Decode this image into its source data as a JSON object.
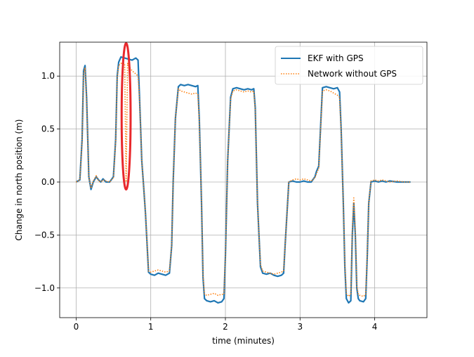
{
  "chart_data": {
    "type": "line",
    "xlabel": "time (minutes)",
    "ylabel": "Change in north position (m)",
    "xlim": [
      -0.22,
      4.7
    ],
    "ylim": [
      -1.28,
      1.32
    ],
    "xticks": [
      0,
      1,
      2,
      3,
      4
    ],
    "xtick_labels": [
      "0",
      "1",
      "2",
      "3",
      "4"
    ],
    "yticks": [
      -1.0,
      -0.5,
      0.0,
      0.5,
      1.0
    ],
    "ytick_labels": [
      "−1.0",
      "−0.5",
      "0.0",
      "0.5",
      "1.0"
    ],
    "grid": true,
    "legend": "upper-right",
    "series": [
      {
        "name": "EKF with GPS",
        "color": "#1f77b4",
        "style": "solid",
        "x": [
          0.0,
          0.05,
          0.08,
          0.1,
          0.12,
          0.14,
          0.17,
          0.2,
          0.23,
          0.27,
          0.3,
          0.33,
          0.36,
          0.4,
          0.45,
          0.5,
          0.53,
          0.55,
          0.57,
          0.6,
          0.65,
          0.7,
          0.75,
          0.8,
          0.83,
          0.85,
          0.88,
          0.9,
          0.93,
          0.97,
          1.0,
          1.05,
          1.1,
          1.15,
          1.2,
          1.25,
          1.28,
          1.3,
          1.33,
          1.37,
          1.4,
          1.45,
          1.5,
          1.55,
          1.6,
          1.63,
          1.65,
          1.68,
          1.7,
          1.72,
          1.75,
          1.8,
          1.85,
          1.9,
          1.95,
          1.98,
          2.0,
          2.03,
          2.07,
          2.1,
          2.15,
          2.2,
          2.25,
          2.3,
          2.35,
          2.38,
          2.4,
          2.43,
          2.47,
          2.5,
          2.55,
          2.6,
          2.65,
          2.7,
          2.75,
          2.78,
          2.8,
          2.85,
          2.9,
          2.95,
          3.0,
          3.05,
          3.1,
          3.15,
          3.2,
          3.22,
          3.25,
          3.28,
          3.3,
          3.35,
          3.4,
          3.45,
          3.5,
          3.53,
          3.55,
          3.58,
          3.6,
          3.62,
          3.65,
          3.68,
          3.7,
          3.72,
          3.74,
          3.76,
          3.78,
          3.8,
          3.85,
          3.88,
          3.9,
          3.92,
          3.95,
          4.0,
          4.05,
          4.1,
          4.15,
          4.2,
          4.3,
          4.4,
          4.48
        ],
        "y": [
          0.0,
          0.02,
          0.4,
          1.05,
          1.1,
          0.8,
          0.05,
          -0.07,
          0.0,
          0.05,
          0.02,
          0.0,
          0.03,
          0.0,
          0.0,
          0.05,
          0.4,
          1.0,
          1.13,
          1.18,
          1.17,
          1.16,
          1.15,
          1.17,
          1.15,
          0.8,
          0.2,
          0.0,
          -0.3,
          -0.85,
          -0.87,
          -0.88,
          -0.86,
          -0.87,
          -0.88,
          -0.86,
          -0.6,
          0.0,
          0.6,
          0.9,
          0.92,
          0.91,
          0.92,
          0.91,
          0.9,
          0.91,
          0.6,
          -0.2,
          -0.9,
          -1.1,
          -1.12,
          -1.13,
          -1.12,
          -1.14,
          -1.13,
          -1.1,
          -0.7,
          0.2,
          0.8,
          0.88,
          0.89,
          0.88,
          0.87,
          0.88,
          0.87,
          0.88,
          0.7,
          -0.2,
          -0.8,
          -0.86,
          -0.87,
          -0.86,
          -0.88,
          -0.89,
          -0.88,
          -0.86,
          -0.6,
          0.0,
          0.01,
          0.0,
          0.0,
          0.01,
          0.0,
          0.0,
          0.05,
          0.1,
          0.15,
          0.6,
          0.89,
          0.9,
          0.89,
          0.88,
          0.89,
          0.85,
          0.5,
          -0.2,
          -0.8,
          -1.1,
          -1.14,
          -1.12,
          -0.5,
          -0.2,
          -0.5,
          -1.0,
          -1.1,
          -1.12,
          -1.13,
          -1.1,
          -0.7,
          -0.2,
          0.0,
          0.01,
          0.0,
          0.01,
          0.0,
          0.01,
          0.0,
          0.0,
          0.0
        ]
      },
      {
        "name": "Network without GPS",
        "color": "#ff7f0e",
        "style": "dotted",
        "x": [
          0.0,
          0.05,
          0.08,
          0.1,
          0.12,
          0.14,
          0.17,
          0.2,
          0.23,
          0.27,
          0.3,
          0.33,
          0.36,
          0.4,
          0.45,
          0.5,
          0.53,
          0.55,
          0.57,
          0.6,
          0.63,
          0.65,
          0.66,
          0.67,
          0.68,
          0.69,
          0.7,
          0.72,
          0.75,
          0.8,
          0.83,
          0.85,
          0.88,
          0.9,
          0.93,
          0.97,
          1.0,
          1.05,
          1.1,
          1.15,
          1.2,
          1.25,
          1.28,
          1.3,
          1.33,
          1.37,
          1.4,
          1.45,
          1.5,
          1.55,
          1.6,
          1.63,
          1.65,
          1.68,
          1.7,
          1.72,
          1.75,
          1.8,
          1.85,
          1.9,
          1.95,
          1.98,
          2.0,
          2.03,
          2.07,
          2.1,
          2.15,
          2.2,
          2.25,
          2.3,
          2.35,
          2.38,
          2.4,
          2.43,
          2.47,
          2.5,
          2.55,
          2.6,
          2.65,
          2.7,
          2.75,
          2.78,
          2.8,
          2.85,
          2.9,
          2.95,
          3.0,
          3.05,
          3.1,
          3.15,
          3.2,
          3.22,
          3.25,
          3.28,
          3.3,
          3.35,
          3.4,
          3.45,
          3.5,
          3.53,
          3.55,
          3.58,
          3.6,
          3.62,
          3.65,
          3.68,
          3.7,
          3.72,
          3.74,
          3.76,
          3.78,
          3.8,
          3.85,
          3.88,
          3.9,
          3.92,
          3.95,
          4.0,
          4.05,
          4.1,
          4.15,
          4.2,
          4.3,
          4.4,
          4.48
        ],
        "y": [
          0.0,
          0.02,
          0.38,
          1.02,
          1.08,
          0.78,
          0.05,
          -0.06,
          0.01,
          0.06,
          0.01,
          0.0,
          0.02,
          0.01,
          0.0,
          0.04,
          0.38,
          0.98,
          1.1,
          1.12,
          1.12,
          1.12,
          0.6,
          0.0,
          0.6,
          1.12,
          1.1,
          1.08,
          1.05,
          1.02,
          1.0,
          0.78,
          0.2,
          0.0,
          -0.3,
          -0.84,
          -0.85,
          -0.84,
          -0.83,
          -0.84,
          -0.85,
          -0.84,
          -0.6,
          0.0,
          0.6,
          0.88,
          0.86,
          0.85,
          0.84,
          0.83,
          0.84,
          0.83,
          0.58,
          -0.2,
          -0.88,
          -1.06,
          -1.07,
          -1.06,
          -1.05,
          -1.07,
          -1.06,
          -1.06,
          -0.7,
          0.2,
          0.78,
          0.86,
          0.87,
          0.86,
          0.85,
          0.86,
          0.85,
          0.86,
          0.68,
          -0.2,
          -0.78,
          -0.84,
          -0.85,
          -0.86,
          -0.87,
          -0.86,
          -0.85,
          -0.84,
          -0.6,
          0.0,
          0.02,
          0.03,
          0.02,
          0.03,
          0.02,
          0.01,
          0.04,
          0.08,
          0.13,
          0.58,
          0.86,
          0.87,
          0.86,
          0.84,
          0.82,
          0.8,
          0.48,
          -0.2,
          -0.78,
          -1.05,
          -1.08,
          -1.06,
          -0.45,
          -0.15,
          -0.45,
          -0.98,
          -1.06,
          -1.07,
          -1.08,
          -1.06,
          -0.68,
          -0.2,
          0.01,
          0.02,
          0.01,
          0.02,
          0.01,
          0.0,
          0.01,
          0.0,
          0.0
        ]
      }
    ],
    "annotation": {
      "type": "ellipse",
      "color": "#e8282c",
      "cx": 0.67,
      "cy": 0.62,
      "rx": 0.06,
      "ry": 0.69
    }
  }
}
